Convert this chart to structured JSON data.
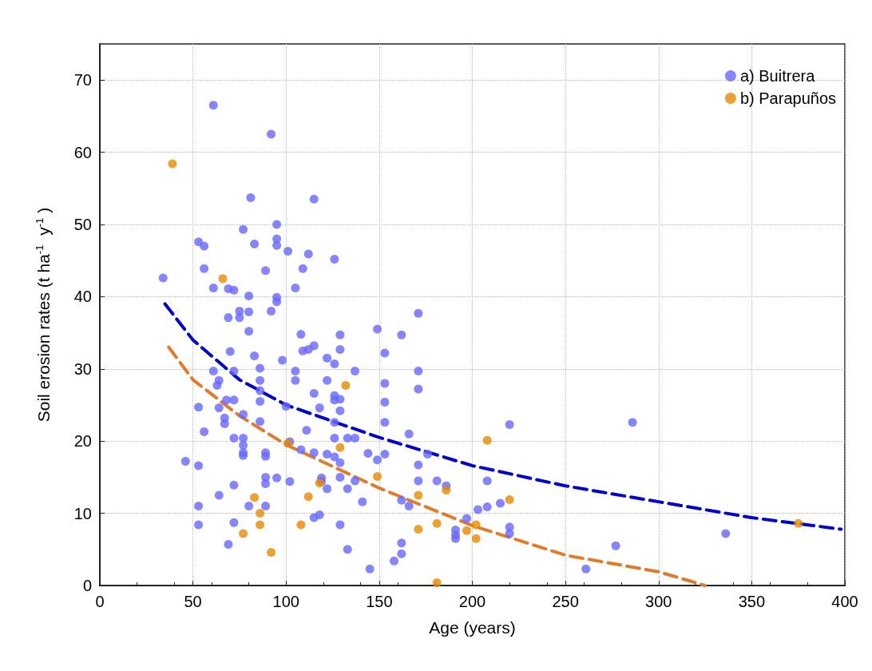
{
  "chart_data": {
    "type": "scatter",
    "xlabel": "Age (years)",
    "ylabel": "Soil erosion rates (t ha$^{-1}$ y$^{-1}$)",
    "xlim": [
      0,
      400
    ],
    "xticks": [
      0,
      50,
      100,
      150,
      200,
      250,
      300,
      350,
      400
    ],
    "ylim": [
      0,
      75
    ],
    "yticks": [
      0,
      10,
      20,
      30,
      40,
      50,
      60,
      70
    ],
    "grid": true,
    "legend": "top right",
    "marker": "circle",
    "series": [
      {
        "name": "a) Buitrera",
        "color": "#6666ff",
        "x": [
          34,
          61,
          92,
          81,
          115,
          53,
          56,
          95,
          95,
          95,
          77,
          83,
          101,
          112,
          126,
          109,
          89,
          56,
          61,
          69,
          72,
          80,
          95,
          95,
          105,
          75,
          75,
          69,
          80,
          92,
          171,
          80,
          149,
          108,
          129,
          162,
          115,
          109,
          112,
          129,
          153,
          70,
          83,
          98,
          122,
          126,
          86,
          61,
          72,
          105,
          137,
          171,
          105,
          64,
          86,
          122,
          153,
          63,
          86,
          171,
          115,
          126,
          126,
          129,
          68,
          72,
          86,
          153,
          118,
          53,
          64,
          100,
          129,
          77,
          67,
          67,
          86,
          126,
          153,
          220,
          286,
          111,
          166,
          56,
          77,
          72,
          126,
          133,
          137,
          102,
          77,
          89,
          89,
          108,
          115,
          122,
          126,
          144,
          153,
          176,
          77,
          77,
          149,
          171,
          53,
          129,
          46,
          89,
          95,
          129,
          119,
          119,
          102,
          137,
          171,
          181,
          186,
          208,
          72,
          89,
          122,
          133,
          64,
          162,
          141,
          215,
          208,
          203,
          53,
          80,
          89,
          166,
          197,
          118,
          115,
          191,
          191,
          191,
          220,
          220,
          336,
          53,
          129,
          72,
          162,
          69,
          277,
          162,
          133,
          261,
          145,
          158
        ],
        "values": [
          42.6,
          66.5,
          62.5,
          53.7,
          53.5,
          47.6,
          47.0,
          50.0,
          48.0,
          47.1,
          49.3,
          47.3,
          46.3,
          45.9,
          45.2,
          43.9,
          43.6,
          43.9,
          41.2,
          41.1,
          40.9,
          40.1,
          39.9,
          39.3,
          41.2,
          38.0,
          37.1,
          37.1,
          37.9,
          38.0,
          37.7,
          35.2,
          35.5,
          34.8,
          34.7,
          34.7,
          33.2,
          32.5,
          32.7,
          32.7,
          32.2,
          32.4,
          31.8,
          31.2,
          31.5,
          30.7,
          30.1,
          29.7,
          29.7,
          29.7,
          29.7,
          29.7,
          28.4,
          28.4,
          28.4,
          28.4,
          28.0,
          27.7,
          27.0,
          27.2,
          26.6,
          26.3,
          25.7,
          25.8,
          25.7,
          25.7,
          25.5,
          25.4,
          24.6,
          24.7,
          24.6,
          24.8,
          24.2,
          23.7,
          23.2,
          22.4,
          22.7,
          22.6,
          22.6,
          22.3,
          22.6,
          21.5,
          21.0,
          21.3,
          20.4,
          20.4,
          20.4,
          20.4,
          20.4,
          19.9,
          19.4,
          18.4,
          17.9,
          18.8,
          18.4,
          18.2,
          17.8,
          18.3,
          18.2,
          18.2,
          18.4,
          18.0,
          17.4,
          16.7,
          16.6,
          17.0,
          17.2,
          15.0,
          14.9,
          15.0,
          14.9,
          14.4,
          14.4,
          14.5,
          14.5,
          14.5,
          13.8,
          14.5,
          13.9,
          14.1,
          13.4,
          13.4,
          12.5,
          11.8,
          11.6,
          11.4,
          10.9,
          10.5,
          11.0,
          11.0,
          11.0,
          11.0,
          9.3,
          9.8,
          9.4,
          7.7,
          7.0,
          6.5,
          8.1,
          7.2,
          7.2,
          8.4,
          8.4,
          8.7,
          5.9,
          5.7,
          5.5,
          4.4,
          5.0,
          2.3,
          2.3,
          3.4
        ]
      },
      {
        "name": "b) Parapuños",
        "color": "#e68a00",
        "x": [
          39,
          66,
          132,
          101,
          129,
          208,
          118,
          83,
          112,
          149,
          171,
          220,
          186,
          86,
          86,
          108,
          77,
          92,
          171,
          181,
          197,
          202,
          202,
          181,
          375
        ],
        "values": [
          58.4,
          42.5,
          27.7,
          19.7,
          19.1,
          20.1,
          14.2,
          12.2,
          12.3,
          15.1,
          12.5,
          11.9,
          13.2,
          10.0,
          8.4,
          8.4,
          7.2,
          4.6,
          7.8,
          8.6,
          7.6,
          8.4,
          6.5,
          0.4,
          8.6
        ]
      },
      {
        "type": "line",
        "marker": "none",
        "line_style": "dashed",
        "color": "#0000cc",
        "x": [
          35,
          50,
          75,
          100,
          150,
          200,
          250,
          300,
          350,
          398
        ],
        "values": [
          39,
          34,
          28.5,
          25,
          20.5,
          16.6,
          13.8,
          11.6,
          9.4,
          7.8
        ]
      },
      {
        "type": "line",
        "marker": "none",
        "line_style": "dashed",
        "color": "#e07b2c",
        "x": [
          37,
          50,
          75,
          100,
          150,
          200,
          250,
          300,
          325
        ],
        "values": [
          33,
          28.5,
          23.5,
          19.5,
          13.5,
          8.3,
          4.2,
          1.9,
          0
        ]
      }
    ]
  }
}
